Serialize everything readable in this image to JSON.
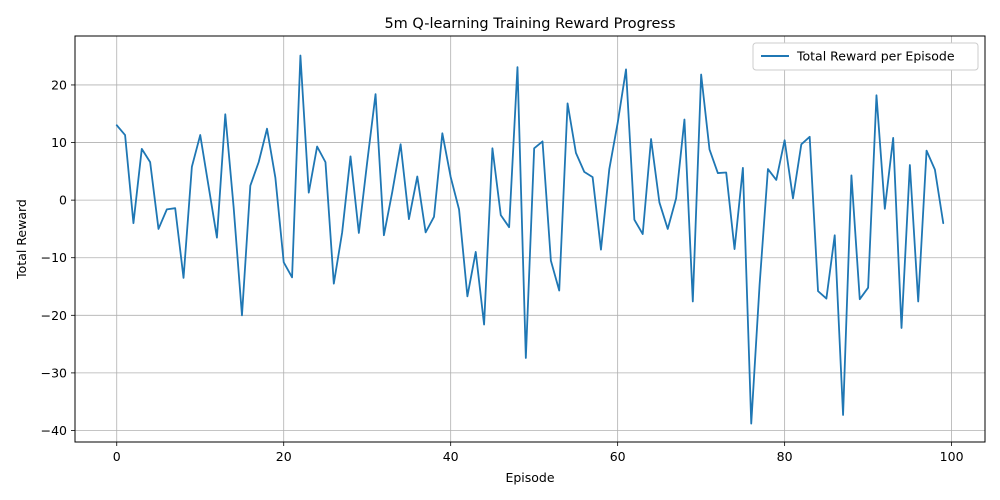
{
  "chart_data": {
    "type": "line",
    "title": "5m Q-learning Training Reward Progress",
    "xlabel": "Episode",
    "ylabel": "Total Reward",
    "xlim": [
      -5,
      104
    ],
    "ylim": [
      -42,
      28.5
    ],
    "xticks": [
      0,
      20,
      40,
      60,
      80,
      100
    ],
    "yticks": [
      -40,
      -30,
      -20,
      -10,
      0,
      10,
      20
    ],
    "grid": true,
    "legend_position": "top-right",
    "series": [
      {
        "name": "Total Reward per Episode",
        "color": "#1f77b4",
        "x": [
          0,
          1,
          2,
          3,
          4,
          5,
          6,
          7,
          8,
          9,
          10,
          11,
          12,
          13,
          14,
          15,
          16,
          17,
          18,
          19,
          20,
          21,
          22,
          23,
          24,
          25,
          26,
          27,
          28,
          29,
          30,
          31,
          32,
          33,
          34,
          35,
          36,
          37,
          38,
          39,
          40,
          41,
          42,
          43,
          44,
          45,
          46,
          47,
          48,
          49,
          50,
          51,
          52,
          53,
          54,
          55,
          56,
          57,
          58,
          59,
          60,
          61,
          62,
          63,
          64,
          65,
          66,
          67,
          68,
          69,
          70,
          71,
          72,
          73,
          74,
          75,
          76,
          77,
          78,
          79,
          80,
          81,
          82,
          83,
          84,
          85,
          86,
          87,
          88,
          89,
          90,
          91,
          92,
          93,
          94,
          95,
          96,
          97,
          98,
          99
        ],
        "values": [
          13.0,
          11.3,
          -4.0,
          8.9,
          6.6,
          -5.0,
          -1.6,
          -1.4,
          -13.5,
          5.8,
          11.3,
          2.4,
          -6.5,
          14.9,
          -1.2,
          -20.0,
          2.5,
          6.6,
          12.4,
          3.9,
          -10.8,
          -13.4,
          25.1,
          1.3,
          9.3,
          6.6,
          -14.5,
          -5.6,
          7.6,
          -5.7,
          6.6,
          18.4,
          -6.1,
          1.4,
          9.7,
          -3.3,
          4.1,
          -5.6,
          -2.9,
          11.6,
          4.0,
          -1.6,
          -16.7,
          -9.0,
          -21.6,
          9.0,
          -2.6,
          -4.7,
          23.1,
          -27.4,
          9.0,
          10.2,
          -10.5,
          -15.7,
          16.8,
          8.2,
          4.9,
          4.0,
          -8.6,
          5.4,
          13.4,
          22.7,
          -3.4,
          -5.9,
          10.6,
          -0.4,
          -5.0,
          0.3,
          14.0,
          -17.6,
          21.8,
          8.8,
          4.7,
          4.8,
          -8.5,
          5.6,
          -38.8,
          -14.7,
          5.4,
          3.5,
          10.4,
          0.3,
          9.7,
          11.0,
          -15.8,
          -17.1,
          -6.1,
          -37.3,
          4.3,
          -17.2,
          -15.2,
          18.2,
          -1.5,
          10.8,
          -22.2,
          6.1,
          -17.6,
          8.6,
          5.3,
          -4.0
        ]
      }
    ]
  }
}
